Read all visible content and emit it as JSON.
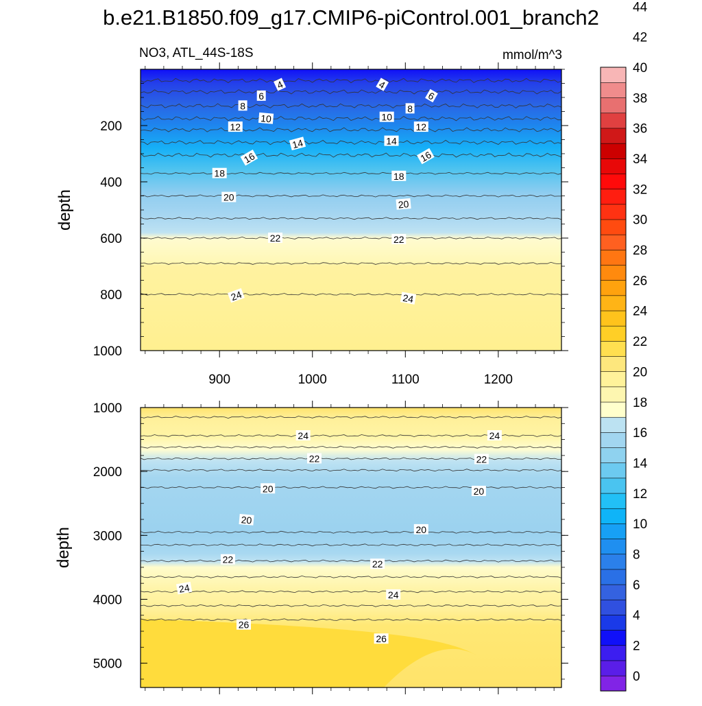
{
  "title": "b.e21.B1850.f09_g17.CMIP6-piControl.001_branch2",
  "variable_label": "NO3, ATL_44S-18S",
  "units_label": "mmol/m^3",
  "chart_data": [
    {
      "type": "contour",
      "panel": "upper",
      "ylabel": "depth",
      "xlabel": "",
      "xlim": [
        815,
        1268
      ],
      "ylim": [
        1000,
        0
      ],
      "x_ticks": [
        900,
        1000,
        1100,
        1200
      ],
      "y_ticks": [
        200,
        400,
        600,
        800,
        1000
      ],
      "contour_lines": [
        {
          "level": 4,
          "depth": 40
        },
        {
          "level": 6,
          "depth": 80
        },
        {
          "level": 8,
          "depth": 130
        },
        {
          "level": 10,
          "depth": 175
        },
        {
          "level": 12,
          "depth": 215
        },
        {
          "level": 14,
          "depth": 260
        },
        {
          "level": 16,
          "depth": 305
        },
        {
          "level": 18,
          "depth": 370
        },
        {
          "level": 20,
          "depth": 450
        },
        {
          "level": 21,
          "depth": 530
        },
        {
          "level": 22,
          "depth": 600
        },
        {
          "level": 23,
          "depth": 690
        },
        {
          "level": 24,
          "depth": 800
        }
      ],
      "contour_labels": [
        {
          "text": "4",
          "x": 965,
          "y": 55,
          "angle": -25
        },
        {
          "text": "4",
          "x": 1075,
          "y": 55,
          "angle": 30
        },
        {
          "text": "6",
          "x": 945,
          "y": 95,
          "angle": 0
        },
        {
          "text": "6",
          "x": 1128,
          "y": 95,
          "angle": 30
        },
        {
          "text": "8",
          "x": 925,
          "y": 130,
          "angle": 0
        },
        {
          "text": "8",
          "x": 1105,
          "y": 140,
          "angle": 0
        },
        {
          "text": "10",
          "x": 950,
          "y": 175,
          "angle": 5
        },
        {
          "text": "10",
          "x": 1080,
          "y": 170,
          "angle": 0
        },
        {
          "text": "12",
          "x": 917,
          "y": 205,
          "angle": 0
        },
        {
          "text": "12",
          "x": 1117,
          "y": 205,
          "angle": 0
        },
        {
          "text": "14",
          "x": 984,
          "y": 265,
          "angle": -15
        },
        {
          "text": "14",
          "x": 1085,
          "y": 255,
          "angle": 0
        },
        {
          "text": "16",
          "x": 932,
          "y": 315,
          "angle": -30
        },
        {
          "text": "16",
          "x": 1122,
          "y": 310,
          "angle": -30
        },
        {
          "text": "18",
          "x": 900,
          "y": 370,
          "angle": 0
        },
        {
          "text": "18",
          "x": 1093,
          "y": 380,
          "angle": 0
        },
        {
          "text": "20",
          "x": 910,
          "y": 455,
          "angle": 0
        },
        {
          "text": "20",
          "x": 1098,
          "y": 480,
          "angle": -5
        },
        {
          "text": "22",
          "x": 960,
          "y": 600,
          "angle": 0
        },
        {
          "text": "22",
          "x": 1093,
          "y": 605,
          "angle": 0
        },
        {
          "text": "24",
          "x": 918,
          "y": 805,
          "angle": -20
        },
        {
          "text": "24",
          "x": 1103,
          "y": 815,
          "angle": 10
        }
      ]
    },
    {
      "type": "contour",
      "panel": "lower",
      "ylabel": "depth",
      "xlabel": "",
      "xlim": [
        815,
        1268
      ],
      "ylim": [
        5380,
        1000
      ],
      "x_ticks": [
        900,
        1000,
        1100,
        1200
      ],
      "y_ticks": [
        1000,
        2000,
        3000,
        4000,
        5000
      ],
      "contour_lines": [
        {
          "level": 25,
          "depth": 1150
        },
        {
          "level": 24,
          "depth": 1440
        },
        {
          "level": 23,
          "depth": 1620
        },
        {
          "level": 22,
          "depth": 1800
        },
        {
          "level": 21,
          "depth": 1980
        },
        {
          "level": 20,
          "depth": 2250
        },
        {
          "level": 20,
          "depth": 2950
        },
        {
          "level": 21,
          "depth": 3150
        },
        {
          "level": 22,
          "depth": 3400
        },
        {
          "level": 23,
          "depth": 3650
        },
        {
          "level": 24,
          "depth": 3880
        },
        {
          "level": 25,
          "depth": 4100
        },
        {
          "level": 26,
          "depth": 4320
        }
      ],
      "contour_labels": [
        {
          "text": "24",
          "x": 990,
          "y": 1440,
          "angle": 0
        },
        {
          "text": "24",
          "x": 1196,
          "y": 1440,
          "angle": 0
        },
        {
          "text": "22",
          "x": 1002,
          "y": 1800,
          "angle": 0
        },
        {
          "text": "22",
          "x": 1182,
          "y": 1810,
          "angle": 0
        },
        {
          "text": "20",
          "x": 952,
          "y": 2270,
          "angle": 0
        },
        {
          "text": "20",
          "x": 1179,
          "y": 2310,
          "angle": 0
        },
        {
          "text": "20",
          "x": 929,
          "y": 2760,
          "angle": 5
        },
        {
          "text": "20",
          "x": 1117,
          "y": 2910,
          "angle": 0
        },
        {
          "text": "22",
          "x": 909,
          "y": 3380,
          "angle": 0
        },
        {
          "text": "22",
          "x": 1070,
          "y": 3450,
          "angle": 0
        },
        {
          "text": "24",
          "x": 862,
          "y": 3830,
          "angle": -10
        },
        {
          "text": "24",
          "x": 1087,
          "y": 3930,
          "angle": 0
        },
        {
          "text": "26",
          "x": 926,
          "y": 4400,
          "angle": 0
        },
        {
          "text": "26",
          "x": 1074,
          "y": 4620,
          "angle": 0
        }
      ]
    }
  ],
  "colorbar": {
    "labels": [
      "0",
      "2",
      "4",
      "6",
      "8",
      "10",
      "12",
      "14",
      "16",
      "18",
      "20",
      "22",
      "24",
      "26",
      "28",
      "30",
      "32",
      "34",
      "36",
      "38",
      "40",
      "42",
      "44"
    ],
    "colors": [
      "#8124e6",
      "#5a1ee8",
      "#3c1ef0",
      "#1010f8",
      "#1a3ae8",
      "#3050e0",
      "#3462e0",
      "#2a70e6",
      "#2b80ea",
      "#1f8ff0",
      "#17a0f5",
      "#0fb4f8",
      "#22c0f6",
      "#4ac4f0",
      "#6ccaf0",
      "#8fd2ef",
      "#a2d6f0",
      "#bce2f2",
      "#ffffcc",
      "#fdf6b0",
      "#fff29a",
      "#fde77d",
      "#ffdf50",
      "#ffcf26",
      "#ffc31c",
      "#ffb416",
      "#ffa20e",
      "#ff8a0e",
      "#ff7612",
      "#ff6020",
      "#ff4b10",
      "#ff3212",
      "#ff1e10",
      "#ff0a0a",
      "#e80808",
      "#cc0000",
      "#d01818",
      "#e04040",
      "#e87070",
      "#f08c8c",
      "#f8b6b6"
    ]
  }
}
